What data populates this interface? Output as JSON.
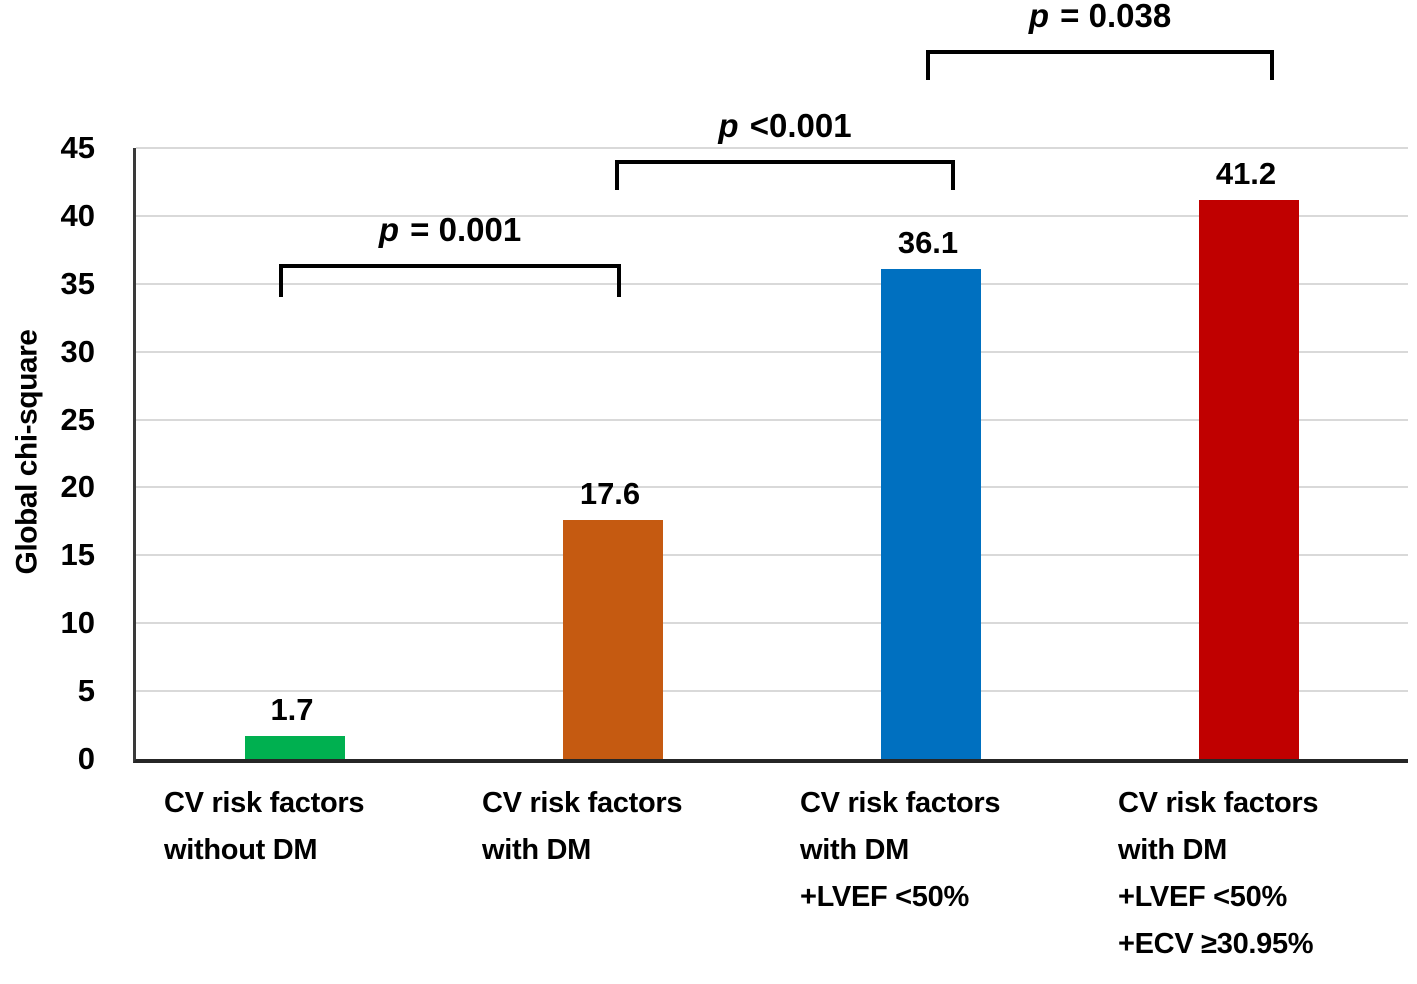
{
  "chart_data": {
    "type": "bar",
    "title": "",
    "xlabel": "",
    "ylabel": "Global chi-square",
    "ylim": [
      0,
      45
    ],
    "ytick_step": 5,
    "y_tick_labels": [
      "0",
      "5",
      "10",
      "15",
      "20",
      "25",
      "30",
      "35",
      "40",
      "45"
    ],
    "grid": true,
    "legend": "none",
    "categories": [
      [
        "CV risk factors",
        "without DM"
      ],
      [
        "CV risk factors",
        "with DM"
      ],
      [
        "CV risk factors",
        "with DM",
        "+LVEF <50%"
      ],
      [
        "CV risk factors",
        "with DM",
        "+LVEF <50%",
        "+ECV ≥30.95%"
      ]
    ],
    "values": [
      1.7,
      17.6,
      36.1,
      41.2
    ],
    "value_labels": [
      "1.7",
      "17.6",
      "36.1",
      "41.2"
    ],
    "bar_colors": [
      "#00B050",
      "#C55A11",
      "#0070C0",
      "#C00000"
    ],
    "annotations": [
      {
        "label": "p = 0.001",
        "between": [
          0,
          1
        ]
      },
      {
        "label": "p <0.001",
        "between": [
          1,
          2
        ]
      },
      {
        "label": "p = 0.038",
        "between": [
          2,
          3
        ]
      }
    ],
    "colors": {
      "grid": "#d9d9d9",
      "y_axis": "#3a3a3a",
      "x_axis": "#262626",
      "bracket": "#000000",
      "text": "#000000"
    }
  }
}
